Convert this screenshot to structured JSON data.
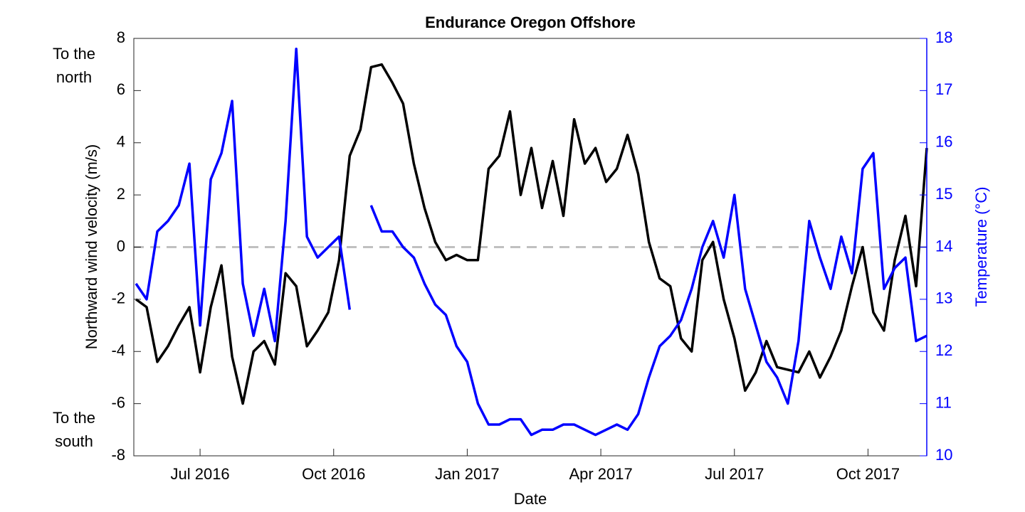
{
  "chart_data": {
    "type": "line",
    "title": "Endurance Oregon Offshore",
    "xlabel": "Date",
    "ylabel": "Northward wind velocity (m/s)",
    "y2label": "Temperature (°C)",
    "annotations": {
      "north": [
        "To the",
        "north"
      ],
      "south": [
        "To the",
        "south"
      ]
    },
    "hline": 0,
    "xlim": [
      2016.376,
      2017.86
    ],
    "xticks": [
      {
        "value": 2016.5,
        "label": "Jul 2016"
      },
      {
        "value": 2016.75,
        "label": "Oct 2016"
      },
      {
        "value": 2017.0,
        "label": "Jan 2017"
      },
      {
        "value": 2017.25,
        "label": "Apr 2017"
      },
      {
        "value": 2017.5,
        "label": "Jul 2017"
      },
      {
        "value": 2017.75,
        "label": "Oct 2017"
      }
    ],
    "ylim": [
      -8,
      8
    ],
    "yticks": [
      -8,
      -6,
      -4,
      -2,
      0,
      2,
      4,
      6,
      8
    ],
    "y2lim": [
      10,
      18
    ],
    "y2ticks": [
      10,
      11,
      12,
      13,
      14,
      15,
      16,
      17,
      18
    ],
    "x": [
      2016.38,
      2016.4,
      2016.42,
      2016.44,
      2016.46,
      2016.48,
      2016.5,
      2016.52,
      2016.54,
      2016.56,
      2016.58,
      2016.6,
      2016.62,
      2016.64,
      2016.66,
      2016.68,
      2016.7,
      2016.72,
      2016.74,
      2016.76,
      2016.78,
      2016.8,
      2016.82,
      2016.84,
      2016.86,
      2016.88,
      2016.9,
      2016.92,
      2016.94,
      2016.96,
      2016.98,
      2017.0,
      2017.02,
      2017.04,
      2017.06,
      2017.08,
      2017.1,
      2017.12,
      2017.14,
      2017.16,
      2017.18,
      2017.2,
      2017.22,
      2017.24,
      2017.26,
      2017.28,
      2017.3,
      2017.32,
      2017.34,
      2017.36,
      2017.38,
      2017.4,
      2017.42,
      2017.44,
      2017.46,
      2017.48,
      2017.5,
      2017.52,
      2017.54,
      2017.56,
      2017.58,
      2017.6,
      2017.62,
      2017.64,
      2017.66,
      2017.68,
      2017.7,
      2017.72,
      2017.74,
      2017.76,
      2017.78,
      2017.8,
      2017.82,
      2017.84,
      2017.86
    ],
    "series": [
      {
        "color": "#000000",
        "values": [
          -2.0,
          -2.3,
          -4.4,
          -3.8,
          -3.0,
          -2.3,
          -4.8,
          -2.3,
          -0.7,
          -4.2,
          -6.0,
          -4.0,
          -3.6,
          -4.5,
          -1.0,
          -1.5,
          -3.8,
          -3.2,
          -2.5,
          -0.5,
          3.5,
          4.5,
          6.9,
          7.0,
          6.3,
          5.5,
          3.2,
          1.5,
          0.2,
          -0.5,
          -0.3,
          -0.5,
          -0.5,
          3.0,
          3.5,
          5.2,
          2.0,
          3.8,
          1.5,
          3.3,
          1.2,
          4.9,
          3.2,
          3.8,
          2.5,
          3.0,
          4.3,
          2.8,
          0.2,
          -1.2,
          -1.5,
          -3.5,
          -4.0,
          -0.5,
          0.2,
          -2.0,
          -3.5,
          -5.5,
          -4.8,
          -3.6,
          -4.6,
          -4.7,
          -4.8,
          -4.0,
          -5.0,
          -4.2,
          -3.2,
          -1.5,
          0.0,
          -2.5,
          -3.2,
          -0.5,
          1.2,
          -1.5,
          3.8
        ]
      },
      {
        "color": "#0000ff",
        "axis": "y2",
        "values": [
          13.3,
          13.0,
          14.3,
          14.5,
          14.8,
          15.6,
          12.5,
          15.3,
          15.8,
          16.8,
          13.3,
          12.3,
          13.2,
          12.2,
          14.5,
          17.8,
          14.2,
          13.8,
          14.0,
          14.2,
          12.8,
          null,
          14.8,
          14.3,
          14.3,
          14.0,
          13.8,
          13.3,
          12.9,
          12.7,
          12.1,
          11.8,
          11.0,
          10.6,
          10.6,
          10.7,
          10.7,
          10.4,
          10.5,
          10.5,
          10.6,
          10.6,
          10.5,
          10.4,
          10.5,
          10.6,
          10.5,
          10.8,
          11.5,
          12.1,
          12.3,
          12.6,
          13.2,
          14.0,
          14.5,
          13.8,
          15.0,
          13.2,
          12.5,
          11.8,
          11.5,
          11.0,
          12.2,
          14.5,
          13.8,
          13.2,
          14.2,
          13.5,
          15.5,
          15.8,
          13.2,
          13.6,
          13.8,
          12.2,
          12.3
        ]
      }
    ]
  }
}
